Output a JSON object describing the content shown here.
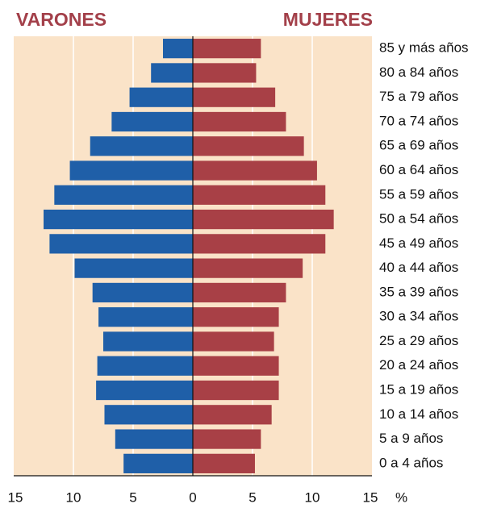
{
  "chart_data": {
    "type": "pyramid",
    "categories": [
      "0 a 4 años",
      "5 a 9 años",
      "10 a 14 años",
      "15 a 19 años",
      "20 a 24 años",
      "25 a 29 años",
      "30 a 34 años",
      "35 a 39 años",
      "40 a 44 años",
      "45 a 49 años",
      "50 a 54 años",
      "55 a 59 años",
      "60 a 64 años",
      "65 a 69 años",
      "70 a 74 años",
      "75 a 79 años",
      "80 a 84 años",
      "85 y más años"
    ],
    "series": [
      {
        "name": "VARONES",
        "color": "#1f5fa8",
        "values": [
          5.8,
          6.5,
          7.4,
          8.1,
          8.0,
          7.5,
          7.9,
          8.4,
          9.9,
          12.0,
          12.5,
          11.6,
          10.3,
          8.6,
          6.8,
          5.3,
          3.5,
          2.5
        ]
      },
      {
        "name": "MUJERES",
        "color": "#a84046",
        "values": [
          5.2,
          5.7,
          6.6,
          7.2,
          7.2,
          6.8,
          7.2,
          7.8,
          9.2,
          11.1,
          11.8,
          11.1,
          10.4,
          9.3,
          7.8,
          6.9,
          5.3,
          5.7
        ]
      }
    ],
    "x_label": "%",
    "xlim": [
      0,
      15
    ],
    "xticks": [
      0,
      5,
      10,
      15
    ],
    "grid": true,
    "background": "#fae3c8"
  }
}
